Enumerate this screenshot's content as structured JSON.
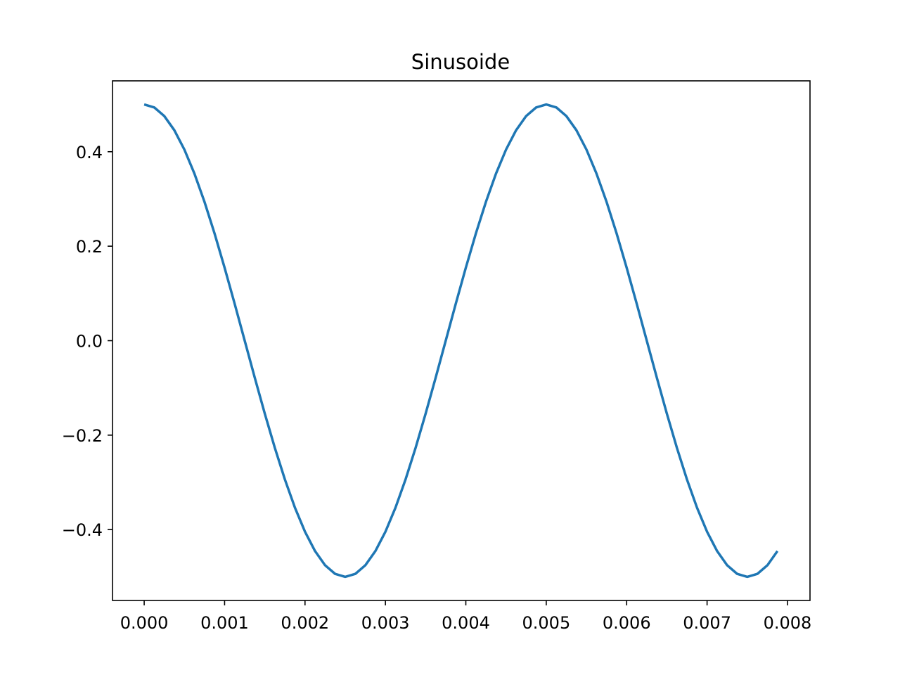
{
  "chart_data": {
    "type": "line",
    "title": "Sinusoide",
    "xlabel": "",
    "ylabel": "",
    "xlim": [
      -0.000394,
      0.00828
    ],
    "ylim": [
      -0.55,
      0.55
    ],
    "grid": false,
    "line_color": "#1f77b4",
    "x_ticks": [
      {
        "value": 0.0,
        "label": "0.000"
      },
      {
        "value": 0.001,
        "label": "0.001"
      },
      {
        "value": 0.002,
        "label": "0.002"
      },
      {
        "value": 0.003,
        "label": "0.003"
      },
      {
        "value": 0.004,
        "label": "0.004"
      },
      {
        "value": 0.005,
        "label": "0.005"
      },
      {
        "value": 0.006,
        "label": "0.006"
      },
      {
        "value": 0.007,
        "label": "0.007"
      },
      {
        "value": 0.008,
        "label": "0.008"
      }
    ],
    "y_ticks": [
      {
        "value": -0.4,
        "label": "−0.4"
      },
      {
        "value": -0.2,
        "label": "−0.2"
      },
      {
        "value": 0.0,
        "label": "0.0"
      },
      {
        "value": 0.2,
        "label": "0.2"
      },
      {
        "value": 0.4,
        "label": "0.4"
      }
    ],
    "series": [
      {
        "x": [
          0.0,
          0.000125,
          0.00025,
          0.000375,
          0.0005,
          0.000625,
          0.00075,
          0.000875,
          0.001,
          0.001125,
          0.00125,
          0.001375,
          0.0015,
          0.001625,
          0.00175,
          0.001875,
          0.002,
          0.002125,
          0.00225,
          0.002375,
          0.0025,
          0.002625,
          0.00275,
          0.002875,
          0.003,
          0.003125,
          0.00325,
          0.003375,
          0.0035,
          0.003625,
          0.00375,
          0.003875,
          0.004,
          0.004125,
          0.00425,
          0.004375,
          0.0045,
          0.004625,
          0.00475,
          0.004875,
          0.005,
          0.005125,
          0.00525,
          0.005375,
          0.0055,
          0.005625,
          0.00575,
          0.005875,
          0.006,
          0.006125,
          0.00625,
          0.006375,
          0.0065,
          0.006625,
          0.00675,
          0.006875,
          0.007,
          0.007125,
          0.00725,
          0.007375,
          0.0075,
          0.007625,
          0.00775,
          0.007875
        ],
        "values": [
          0.5,
          0.4938,
          0.4755,
          0.4455,
          0.4045,
          0.3536,
          0.2939,
          0.227,
          0.1545,
          0.0782,
          0.0,
          -0.0782,
          -0.1545,
          -0.227,
          -0.2939,
          -0.3536,
          -0.4045,
          -0.4455,
          -0.4755,
          -0.4938,
          -0.5,
          -0.4938,
          -0.4755,
          -0.4455,
          -0.4045,
          -0.3536,
          -0.2939,
          -0.227,
          -0.1545,
          -0.0782,
          0.0,
          0.0782,
          0.1545,
          0.227,
          0.2939,
          0.3536,
          0.4045,
          0.4455,
          0.4755,
          0.4938,
          0.5,
          0.4938,
          0.4755,
          0.4455,
          0.4045,
          0.3536,
          0.2939,
          0.227,
          0.1545,
          0.0782,
          0.0,
          -0.0782,
          -0.1545,
          -0.227,
          -0.2939,
          -0.3536,
          -0.4045,
          -0.4455,
          -0.4755,
          -0.4938,
          -0.5,
          -0.4938,
          -0.4755,
          -0.4455
        ]
      }
    ]
  }
}
